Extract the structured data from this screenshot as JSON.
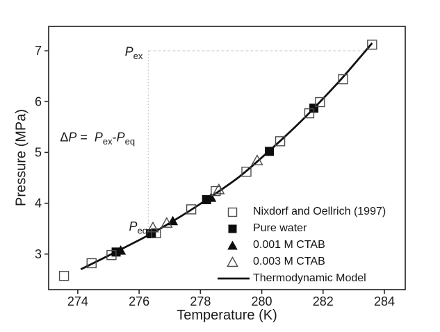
{
  "chart_data": {
    "type": "scatter",
    "title": "",
    "xlabel": "Temperature (K)",
    "ylabel": "Pressure (MPa)",
    "xlim": [
      273.05,
      284.68
    ],
    "ylim": [
      2.3,
      7.48
    ],
    "xticks": [
      274,
      276,
      278,
      280,
      282,
      284
    ],
    "yticks": [
      3,
      4,
      5,
      6,
      7
    ],
    "grid": false,
    "legend_position": "inside-lower-right",
    "series": [
      {
        "name": "Nixdorf and Oellrich (1997)",
        "marker": "open-square",
        "points": [
          [
            273.55,
            2.57
          ],
          [
            274.45,
            2.82
          ],
          [
            275.1,
            2.98
          ],
          [
            276.55,
            3.41
          ],
          [
            277.7,
            3.88
          ],
          [
            278.5,
            4.24
          ],
          [
            279.5,
            4.62
          ],
          [
            280.6,
            5.22
          ],
          [
            281.55,
            5.77
          ],
          [
            281.9,
            5.99
          ],
          [
            282.65,
            6.44
          ],
          [
            283.6,
            7.12
          ]
        ]
      },
      {
        "name": "Pure water",
        "marker": "filled-square",
        "points": [
          [
            275.25,
            3.04
          ],
          [
            276.4,
            3.4
          ],
          [
            278.2,
            4.07
          ],
          [
            280.25,
            5.02
          ],
          [
            281.7,
            5.87
          ]
        ]
      },
      {
        "name": "0.001 M CTAB",
        "marker": "filled-triangle",
        "points": [
          [
            275.4,
            3.08
          ],
          [
            277.1,
            3.66
          ],
          [
            278.35,
            4.12
          ]
        ]
      },
      {
        "name": "0.003 M CTAB",
        "marker": "open-triangle",
        "points": [
          [
            276.45,
            3.53
          ],
          [
            276.9,
            3.62
          ],
          [
            278.6,
            4.28
          ],
          [
            279.85,
            4.85
          ]
        ]
      },
      {
        "name": "Thermodynamic Model",
        "marker": "line",
        "curve": [
          [
            274.1,
            2.7
          ],
          [
            275.2,
            3.03
          ],
          [
            276.3,
            3.37
          ],
          [
            277.3,
            3.72
          ],
          [
            278.2,
            4.07
          ],
          [
            279.2,
            4.49
          ],
          [
            280.0,
            4.9
          ],
          [
            281.0,
            5.45
          ],
          [
            281.7,
            5.87
          ],
          [
            282.6,
            6.45
          ],
          [
            283.6,
            7.15
          ]
        ]
      }
    ],
    "annotations": {
      "delta_equation": {
        "text": "ΔP = Pex-Peq",
        "segments": [
          {
            "t": "Δ"
          },
          {
            "t": "P",
            "italic": true
          },
          {
            "t": " =  "
          },
          {
            "t": "P",
            "italic": true
          },
          {
            "t": "ex",
            "sub": true
          },
          {
            "t": "-"
          },
          {
            "t": "P",
            "italic": true
          },
          {
            "t": "eq",
            "sub": true
          }
        ],
        "T": 273.42,
        "P": 5.22,
        "anchor": "start"
      },
      "p_ex": {
        "text": "Pex",
        "segments": [
          {
            "t": "P",
            "italic": true
          },
          {
            "t": "ex",
            "sub": true
          }
        ],
        "T": 276.12,
        "P": 6.9,
        "anchor": "end"
      },
      "p_eq": {
        "text": "Peq",
        "segments": [
          {
            "t": "P",
            "italic": true
          },
          {
            "t": "eq",
            "sub": true
          }
        ],
        "T": 276.27,
        "P": 3.46,
        "anchor": "end"
      },
      "guide_horizontal": {
        "P": 7.0,
        "T_from": 276.3,
        "T_to": 283.42,
        "style": "dashed"
      },
      "guide_vertical": {
        "T": 276.3,
        "P_from": 7.0,
        "P_to": 3.44,
        "style": "dotted"
      }
    },
    "colors": {
      "marker_fill": "#0d0d0d",
      "open_marker_stroke": "#4a4a4a",
      "model_line": "#111111",
      "guide_line": "#bdbdbd",
      "axis": "#2a2a2a",
      "text": "#1a1a1a"
    }
  }
}
